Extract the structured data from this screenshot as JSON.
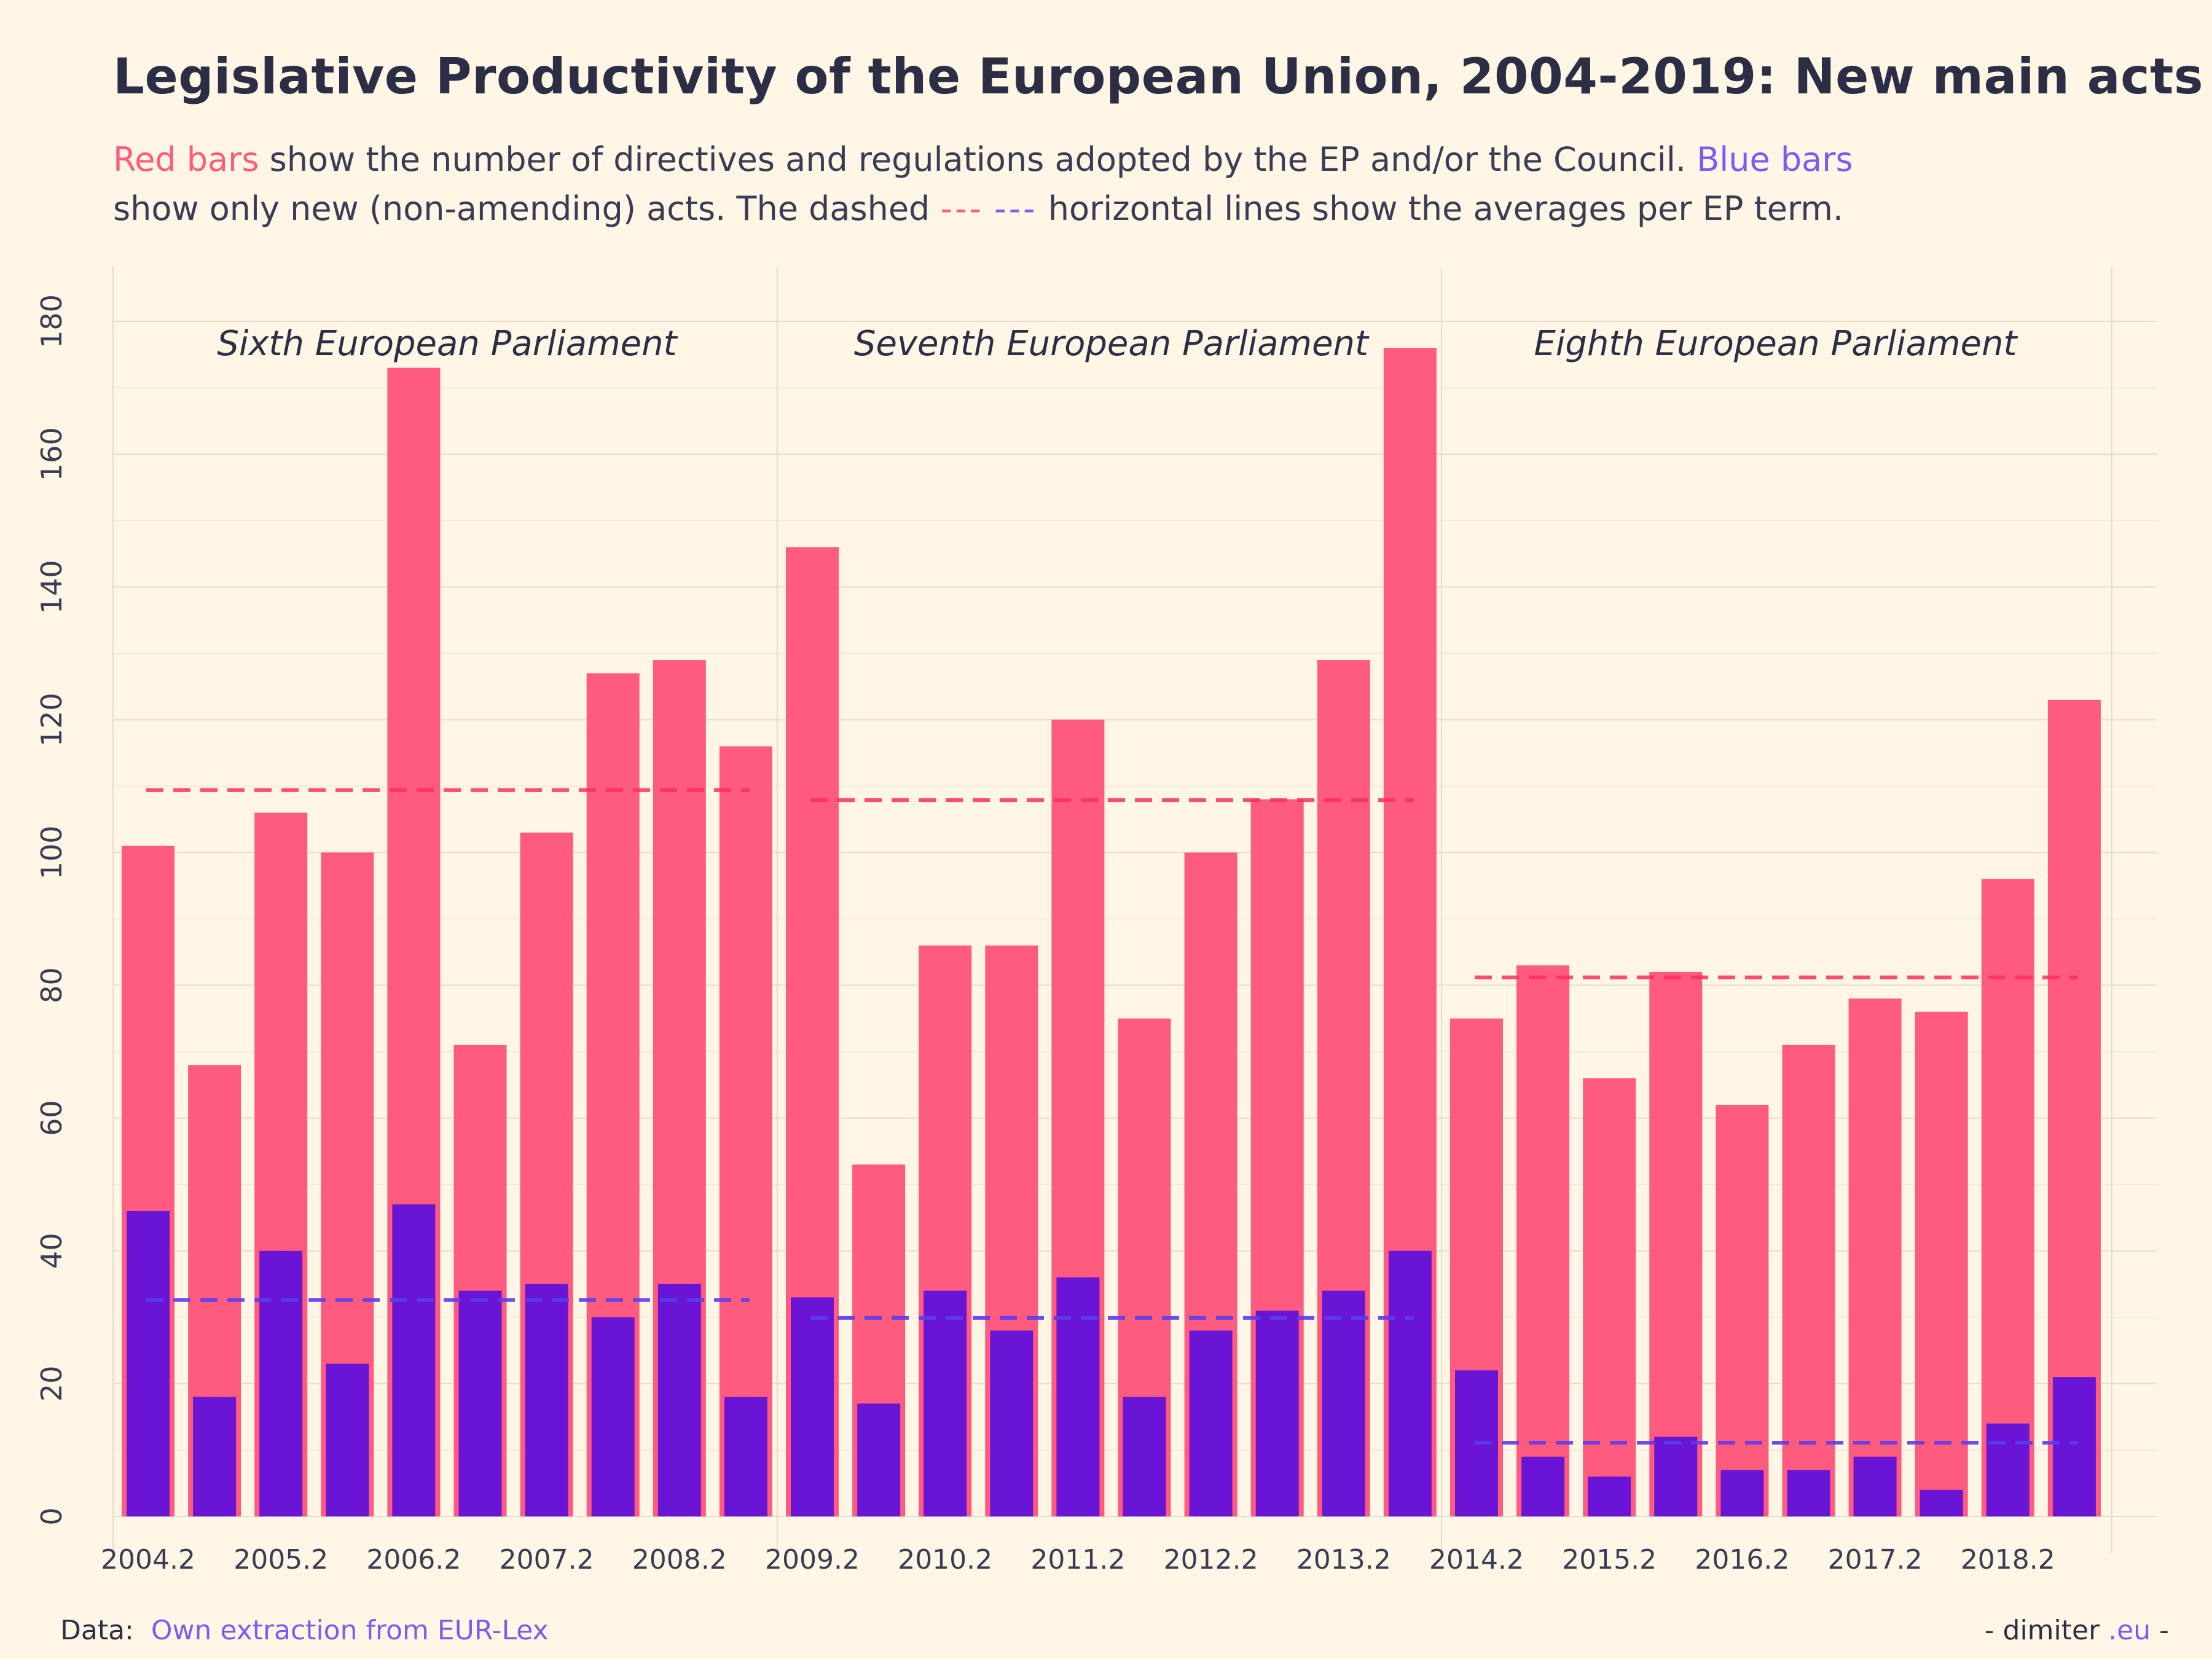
{
  "title": "Legislative Productivity of the European Union, 2004-2019: New main acts",
  "subtitle": {
    "red_label": "Red bars",
    "part1": " show the number of directives and regulations adopted by the EP and/or the Council. ",
    "blue_label": "Blue bars",
    "part2": "show only new (non-amending) acts. The dashed ",
    "dash_red": "---",
    "dash_blue": "---",
    "part3": " horizontal lines show the averages per EP term."
  },
  "footer": {
    "data_label": "Data:",
    "source": "Own extraction from EUR-Lex",
    "credit_prefix": "- dimiter",
    "credit_domain": ".eu",
    "credit_suffix": " -"
  },
  "colors": {
    "red": "#ff5b7e",
    "blue": "#6a14d6",
    "avg_red": "#ff2f5c",
    "avg_blue": "#5b3cf0",
    "background": "#fff6e6"
  },
  "chart_data": {
    "type": "bar",
    "x": [
      2004.2,
      2004.7,
      2005.2,
      2005.7,
      2006.2,
      2006.7,
      2007.2,
      2007.7,
      2008.2,
      2008.7,
      2009.2,
      2009.7,
      2010.2,
      2010.7,
      2011.2,
      2011.7,
      2012.2,
      2012.7,
      2013.2,
      2013.7,
      2014.2,
      2014.7,
      2015.2,
      2015.7,
      2016.2,
      2016.7,
      2017.2,
      2017.7,
      2018.2,
      2018.7
    ],
    "series": [
      {
        "color": "#ff5b7e",
        "values": [
          101,
          68,
          106,
          100,
          173,
          71,
          103,
          127,
          129,
          116,
          146,
          53,
          86,
          86,
          120,
          75,
          100,
          108,
          129,
          176,
          75,
          83,
          66,
          82,
          62,
          71,
          78,
          76,
          96,
          123
        ]
      },
      {
        "color": "#6a14d6",
        "values": [
          46,
          18,
          40,
          23,
          47,
          34,
          35,
          30,
          35,
          18,
          33,
          17,
          34,
          28,
          36,
          18,
          28,
          31,
          34,
          40,
          22,
          9,
          6,
          12,
          7,
          7,
          9,
          4,
          14,
          21
        ]
      }
    ],
    "averages": [
      {
        "term": "Sixth European Parliament",
        "from": 2004.2,
        "to": 2008.7,
        "red": 109.4,
        "blue": 32.6
      },
      {
        "term": "Seventh European Parliament",
        "from": 2009.2,
        "to": 2013.7,
        "red": 107.9,
        "blue": 29.9
      },
      {
        "term": "Eighth European Parliament",
        "from": 2014.2,
        "to": 2018.7,
        "red": 81.2,
        "blue": 11.1
      }
    ],
    "x_tick_labels": [
      "2004.2",
      "2005.2",
      "2006.2",
      "2007.2",
      "2008.2",
      "2009.2",
      "2010.2",
      "2011.2",
      "2012.2",
      "2013.2",
      "2014.2",
      "2015.2",
      "2016.2",
      "2017.2",
      "2018.2"
    ],
    "y_ticks": [
      0,
      20,
      40,
      60,
      80,
      100,
      120,
      140,
      160,
      180
    ],
    "ylim": [
      0,
      180
    ],
    "grid": true,
    "xlabel": "",
    "ylabel": ""
  }
}
